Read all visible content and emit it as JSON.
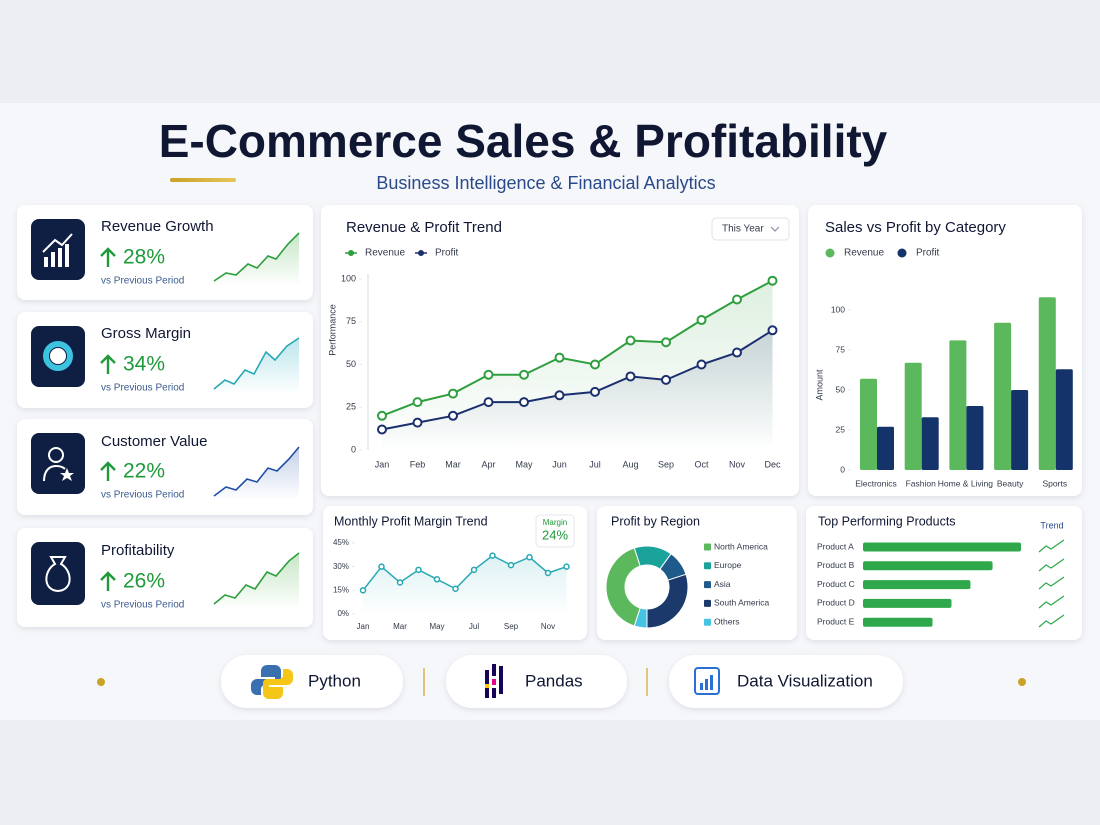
{
  "header": {
    "title": "E-Commerce Sales & Profitability",
    "subtitle": "Business Intelligence & Financial Analytics"
  },
  "kpis": [
    {
      "title": "Revenue Growth",
      "value": "28%",
      "note": "vs Previous Period"
    },
    {
      "title": "Gross Margin",
      "value": "34%",
      "note": "vs Previous Period"
    },
    {
      "title": "Customer Value",
      "value": "22%",
      "note": "vs Previous Period"
    },
    {
      "title": "Profitability",
      "value": "26%",
      "note": "vs Previous Period"
    }
  ],
  "chart_data": [
    {
      "type": "line",
      "title": "Revenue & Profit Trend",
      "dropdown": "This Year",
      "categories": [
        "Jan",
        "Feb",
        "Mar",
        "Apr",
        "May",
        "Jun",
        "Jul",
        "Aug",
        "Sep",
        "Oct",
        "Nov",
        "Dec"
      ],
      "series": [
        {
          "name": "Revenue",
          "color": "#2e9e3e",
          "values": [
            20,
            28,
            33,
            44,
            44,
            54,
            50,
            64,
            63,
            76,
            88,
            99
          ]
        },
        {
          "name": "Profit",
          "color": "#1b2f6e",
          "values": [
            12,
            16,
            20,
            28,
            28,
            32,
            34,
            43,
            41,
            50,
            57,
            70
          ]
        }
      ],
      "ylim": [
        0,
        100
      ],
      "yticks": [
        0,
        25,
        50,
        75,
        100
      ],
      "ylabel": "Performance",
      "area": true
    },
    {
      "type": "bar",
      "title": "Sales vs Profit by Category",
      "categories": [
        "Electronics",
        "Fashion",
        "Home & Living",
        "Beauty",
        "Sports"
      ],
      "series": [
        {
          "name": "Revenue",
          "color": "#5cb85c",
          "values": [
            57,
            67,
            81,
            92,
            108
          ]
        },
        {
          "name": "Profit",
          "color": "#15336b",
          "values": [
            27,
            33,
            40,
            50,
            63
          ]
        }
      ],
      "ylim": [
        0,
        110
      ],
      "yticks": [
        0,
        25,
        50,
        75,
        100
      ],
      "ylabel": "Amount"
    },
    {
      "type": "line",
      "title": "Monthly Profit Margin Trend",
      "annotation": {
        "label": "Margin",
        "value": "24%"
      },
      "categories": [
        "Jan",
        null,
        "Mar",
        null,
        "May",
        null,
        "Jul",
        null,
        "Sep",
        null,
        "Nov",
        null
      ],
      "series": [
        {
          "color": "#26a8b5",
          "values": [
            15,
            30,
            20,
            28,
            22,
            16,
            28,
            37,
            31,
            36,
            26,
            30
          ]
        }
      ],
      "ylim": [
        0,
        45
      ],
      "yticks": [
        {
          "value": 0,
          "label": "0%"
        },
        {
          "value": 15,
          "label": "15%"
        },
        {
          "value": 30,
          "label": "30%"
        },
        {
          "value": 45,
          "label": "45%"
        }
      ],
      "area": true
    },
    {
      "type": "pie",
      "title": "Profit by Region",
      "donut": true,
      "categories": [
        "North America",
        "Europe",
        "Asia",
        "South America",
        "Others"
      ],
      "values": [
        40,
        15,
        10,
        30,
        5
      ],
      "colors": [
        "#5cb85c",
        "#1aa39a",
        "#1e5a8a",
        "#1b3a6b",
        "#46c3e3"
      ]
    },
    {
      "type": "hbar",
      "title": "Top Performing Products",
      "column_label": "Trend",
      "categories": [
        "Product A",
        "Product B",
        "Product C",
        "Product D",
        "Product E"
      ],
      "values": [
        100,
        82,
        68,
        56,
        44
      ],
      "color": "#2ea84a"
    }
  ],
  "badges": [
    "Python",
    "Pandas",
    "Data Visualization"
  ]
}
